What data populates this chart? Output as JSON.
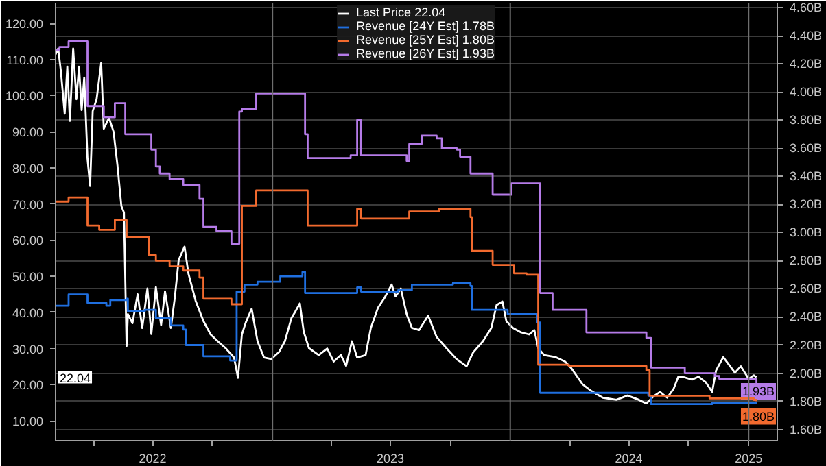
{
  "chart_data": {
    "type": "line",
    "legend": "top",
    "grid": "y",
    "tick_labels": "xy",
    "xlim": [
      "2022-02-02",
      "2025-02-14"
    ],
    "xticks": [
      {
        "value": "2022-04-01",
        "label": null
      },
      {
        "value": "2022-07-01",
        "label": "2022"
      },
      {
        "value": "2022-10-01",
        "label": null
      },
      {
        "value": "2023-04-01",
        "label": null
      },
      {
        "value": "2023-07-01",
        "label": "2023"
      },
      {
        "value": "2023-10-01",
        "label": null
      },
      {
        "value": "2024-04-01",
        "label": null
      },
      {
        "value": "2024-07-01",
        "label": "2024"
      },
      {
        "value": "2024-10-01",
        "label": null
      },
      {
        "value": "2025-01-01",
        "label": "2025"
      }
    ],
    "ylim": [
      4.5,
      125.5
    ],
    "yticks": [
      {
        "value": 10,
        "label": "10.00"
      },
      {
        "value": 20,
        "label": "20.00"
      },
      {
        "value": 30,
        "label": "30.00"
      },
      {
        "value": 40,
        "label": "40.00"
      },
      {
        "value": 50,
        "label": "50.00"
      },
      {
        "value": 60,
        "label": "60.00"
      },
      {
        "value": 70,
        "label": "70.00"
      },
      {
        "value": 80,
        "label": "80.00"
      },
      {
        "value": 90,
        "label": "90.00"
      },
      {
        "value": 100,
        "label": "100.00"
      },
      {
        "value": 110,
        "label": "110.00"
      },
      {
        "value": 120,
        "label": "120.00"
      }
    ],
    "y2lim": [
      1.52,
      4.63
    ],
    "y2ticks": [
      {
        "value": 1.6,
        "label": "1.60B"
      },
      {
        "value": 1.8,
        "label": "1.80B"
      },
      {
        "value": 2.0,
        "label": "2.00B"
      },
      {
        "value": 2.2,
        "label": "2.20B"
      },
      {
        "value": 2.4,
        "label": "2.40B"
      },
      {
        "value": 2.6,
        "label": "2.60B"
      },
      {
        "value": 2.8,
        "label": "2.80B"
      },
      {
        "value": 3.0,
        "label": "3.00B"
      },
      {
        "value": 3.2,
        "label": "3.20B"
      },
      {
        "value": 3.4,
        "label": "3.40B"
      },
      {
        "value": 3.6,
        "label": "3.60B"
      },
      {
        "value": 3.8,
        "label": "3.80B"
      },
      {
        "value": 4.0,
        "label": "4.00B"
      },
      {
        "value": 4.2,
        "label": "4.20B"
      },
      {
        "value": 4.4,
        "label": "4.40B"
      },
      {
        "value": 4.6,
        "label": "4.60B"
      }
    ],
    "ref_lines": [
      {
        "axis": "x",
        "value": "2023-01-01",
        "label": null,
        "color": "#6e6e6e"
      },
      {
        "axis": "x",
        "value": "2024-01-01",
        "label": null,
        "color": "#6e6e6e"
      },
      {
        "axis": "x",
        "value": "2025-01-01",
        "label": null,
        "color": "#6e6e6e"
      }
    ],
    "annotations": [
      "22.04",
      "1.93B",
      "1.80B"
    ],
    "series": [
      {
        "name": "Last Price 22.04",
        "color": "#ffffff",
        "x": [
          "2022-02-02",
          "2022-02-06",
          "2022-02-10",
          "2022-02-16",
          "2022-02-20",
          "2022-02-24",
          "2022-03-01",
          "2022-03-06",
          "2022-03-10",
          "2022-03-14",
          "2022-03-18",
          "2022-03-23",
          "2022-03-27",
          "2022-03-31",
          "2022-04-06",
          "2022-04-13",
          "2022-04-17",
          "2022-04-25",
          "2022-05-02",
          "2022-05-08",
          "2022-05-14",
          "2022-05-18",
          "2022-05-22",
          "2022-05-24",
          "2022-05-31",
          "2022-06-08",
          "2022-06-15",
          "2022-06-23",
          "2022-06-29",
          "2022-07-06",
          "2022-07-14",
          "2022-07-20",
          "2022-07-29",
          "2022-08-04",
          "2022-08-10",
          "2022-08-19",
          "2022-08-25",
          "2022-09-05",
          "2022-09-17",
          "2022-09-28",
          "2022-10-09",
          "2022-10-21",
          "2022-11-03",
          "2022-11-09",
          "2022-11-15",
          "2022-11-21",
          "2022-11-30",
          "2022-12-09",
          "2022-12-19",
          "2022-12-30",
          "2023-01-11",
          "2023-01-20",
          "2023-01-30",
          "2023-02-05",
          "2023-02-12",
          "2023-02-18",
          "2023-02-26",
          "2023-03-13",
          "2023-03-26",
          "2023-04-05",
          "2023-04-16",
          "2023-04-24",
          "2023-05-03",
          "2023-05-11",
          "2023-05-24",
          "2023-06-01",
          "2023-06-12",
          "2023-06-22",
          "2023-07-03",
          "2023-07-09",
          "2023-07-17",
          "2023-07-26",
          "2023-08-03",
          "2023-08-14",
          "2023-08-28",
          "2023-09-10",
          "2023-09-25",
          "2023-10-11",
          "2023-10-26",
          "2023-11-05",
          "2023-11-20",
          "2023-12-03",
          "2023-12-11",
          "2023-12-20",
          "2023-12-26",
          "2024-01-05",
          "2024-01-17",
          "2024-01-30",
          "2024-02-07",
          "2024-02-13",
          "2024-02-22",
          "2024-03-11",
          "2024-03-25",
          "2024-04-04",
          "2024-04-21",
          "2024-05-05",
          "2024-05-22",
          "2024-06-12",
          "2024-06-29",
          "2024-07-14",
          "2024-07-28",
          "2024-08-08",
          "2024-08-18",
          "2024-08-29",
          "2024-09-08",
          "2024-09-15",
          "2024-09-25",
          "2024-10-06",
          "2024-10-16",
          "2024-10-27",
          "2024-11-06",
          "2024-11-12",
          "2024-11-23",
          "2024-12-01",
          "2024-12-11",
          "2024-12-20",
          "2025-01-01",
          "2025-01-09",
          "2025-01-13"
        ],
        "values": [
          111.4,
          113,
          107,
          95,
          108,
          93,
          113,
          99,
          108,
          96,
          105,
          82.5,
          75,
          95.7,
          99,
          109,
          90.8,
          93.8,
          90,
          80.7,
          69.4,
          67.6,
          30.7,
          39.5,
          37,
          45,
          35.7,
          46.6,
          34,
          47,
          36.5,
          45.8,
          35.7,
          44,
          54.5,
          58.2,
          50.7,
          43.2,
          37.6,
          33.9,
          32,
          30.1,
          27.5,
          21.9,
          33.9,
          37.2,
          41,
          32,
          27.5,
          27.1,
          29,
          32,
          38.4,
          40.2,
          42.5,
          34.6,
          30.1,
          28.2,
          30,
          26.4,
          28.2,
          25.2,
          32,
          27.5,
          28.2,
          35.7,
          41.3,
          44,
          47.7,
          44.4,
          46.6,
          39.5,
          35.7,
          35.1,
          39.1,
          33.2,
          30.1,
          27,
          25.1,
          28.9,
          32,
          35.7,
          42,
          43,
          37.6,
          35.7,
          34.5,
          33.9,
          35.1,
          30.1,
          28.2,
          27.6,
          26.4,
          24.5,
          20.1,
          18.2,
          16.4,
          15.8,
          17,
          16,
          14.8,
          16.8,
          18,
          16.4,
          18.9,
          22.2,
          22,
          21.4,
          22.2,
          20.7,
          18,
          23.9,
          27.6,
          25.7,
          23.3,
          25.1,
          21.6,
          22.6,
          22.04
        ]
      },
      {
        "name": "Revenue [24Y Est] 1.78B",
        "color": "#1f6fe0",
        "type": "step",
        "axis": "y2",
        "x": [
          "2022-02-02",
          "2022-02-22",
          "2022-03-23",
          "2022-04-21",
          "2022-04-27",
          "2022-05-22",
          "2022-05-24",
          "2022-06-19",
          "2022-07-06",
          "2022-07-29",
          "2022-08-17",
          "2022-08-21",
          "2022-09-17",
          "2022-10-28",
          "2022-11-07",
          "2022-11-19",
          "2022-12-09",
          "2023-01-13",
          "2023-02-16",
          "2023-02-20",
          "2023-05-01",
          "2023-05-11",
          "2023-05-17",
          "2023-07-13",
          "2023-08-03",
          "2023-10-05",
          "2023-11-01",
          "2023-11-03",
          "2023-12-28",
          "2024-02-11",
          "2024-02-16",
          "2024-05-22",
          "2024-07-31",
          "2024-08-04",
          "2024-10-27",
          "2024-11-06",
          "2025-01-13"
        ],
        "values": [
          2.48,
          2.56,
          2.5,
          2.48,
          2.52,
          2.53,
          2.44,
          2.45,
          2.39,
          2.34,
          2.31,
          2.2,
          2.12,
          2.09,
          2.58,
          2.63,
          2.65,
          2.69,
          2.72,
          2.57,
          2.57,
          2.61,
          2.58,
          2.59,
          2.63,
          2.64,
          2.62,
          2.45,
          2.42,
          2.36,
          1.86,
          1.86,
          1.84,
          1.78,
          1.78,
          1.79,
          1.78
        ]
      },
      {
        "name": "Revenue [25Y Est] 1.80B",
        "color": "#f26a2e",
        "type": "step",
        "axis": "y2",
        "x": [
          "2022-02-02",
          "2022-02-22",
          "2022-03-23",
          "2022-04-10",
          "2022-05-04",
          "2022-05-22",
          "2022-06-25",
          "2022-07-06",
          "2022-07-27",
          "2022-08-17",
          "2022-09-11",
          "2022-09-17",
          "2022-10-30",
          "2022-11-15",
          "2022-12-07",
          "2023-02-24",
          "2023-05-11",
          "2023-05-17",
          "2023-07-30",
          "2023-09-14",
          "2023-11-01",
          "2023-11-03",
          "2023-12-05",
          "2024-01-07",
          "2024-01-26",
          "2024-02-13",
          "2024-03-31",
          "2024-07-28",
          "2024-08-02",
          "2024-11-02",
          "2025-01-09",
          "2025-01-13"
        ],
        "values": [
          3.22,
          3.25,
          3.05,
          3.02,
          3.09,
          2.97,
          2.84,
          2.8,
          2.76,
          2.73,
          2.68,
          2.53,
          2.49,
          3.19,
          3.3,
          3.05,
          3.17,
          3.1,
          3.15,
          3.17,
          3.11,
          2.87,
          2.77,
          2.71,
          2.7,
          2.06,
          2.05,
          2.02,
          1.84,
          1.82,
          1.81,
          1.8
        ]
      },
      {
        "name": "Revenue [26Y Est] 1.93B",
        "color": "#b57be8",
        "type": "step",
        "axis": "y2",
        "x": [
          "2022-02-02",
          "2022-02-08",
          "2022-02-22",
          "2022-03-23",
          "2022-04-17",
          "2022-05-04",
          "2022-05-20",
          "2022-06-29",
          "2022-07-06",
          "2022-07-12",
          "2022-07-27",
          "2022-08-17",
          "2022-09-11",
          "2022-09-17",
          "2022-10-07",
          "2022-10-30",
          "2022-11-11",
          "2022-11-15",
          "2022-12-07",
          "2023-02-20",
          "2023-02-24",
          "2023-05-01",
          "2023-05-11",
          "2023-05-17",
          "2023-07-26",
          "2023-07-30",
          "2023-08-18",
          "2023-09-10",
          "2023-09-18",
          "2023-10-11",
          "2023-10-16",
          "2023-11-01",
          "2023-12-05",
          "2024-01-03",
          "2024-02-16",
          "2024-03-06",
          "2024-04-27",
          "2024-07-28",
          "2024-08-04",
          "2024-09-25",
          "2024-11-10",
          "2024-11-17",
          "2025-01-13"
        ],
        "values": [
          4.3,
          4.32,
          4.36,
          3.9,
          3.82,
          3.92,
          3.7,
          3.59,
          3.47,
          3.42,
          3.38,
          3.34,
          3.24,
          3.04,
          3.01,
          2.92,
          3.86,
          3.88,
          3.99,
          3.7,
          3.53,
          3.55,
          3.8,
          3.55,
          3.51,
          3.63,
          3.69,
          3.67,
          3.6,
          3.59,
          3.54,
          3.42,
          3.27,
          3.35,
          2.57,
          2.45,
          2.29,
          2.25,
          2.04,
          2.0,
          1.98,
          1.96,
          1.93
        ]
      }
    ]
  }
}
